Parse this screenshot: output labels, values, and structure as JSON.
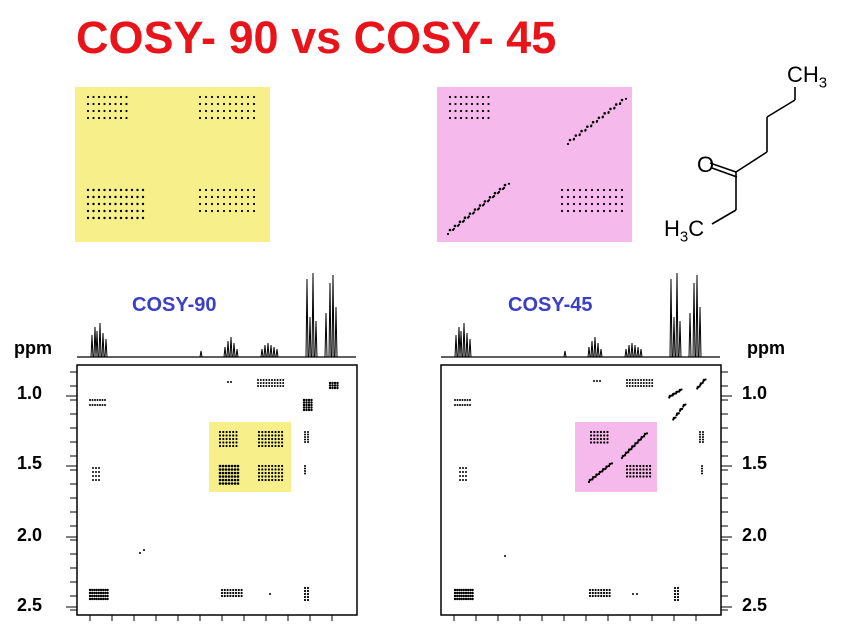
{
  "title": "COSY- 90 vs COSY- 45",
  "colors": {
    "title_red": "#e8141a",
    "label_blue": "#3b3fc4",
    "yellow": "#f7f08a",
    "pink": "#f6b9ec"
  },
  "molecule": {
    "ch3_top": "CH3",
    "oxygen": "O",
    "h3c_bottom": "H3C"
  },
  "left_panel": {
    "label": "COSY-90",
    "axis_unit": "ppm",
    "ticks": [
      "1.0",
      "1.5",
      "2.0",
      "2.5"
    ]
  },
  "right_panel": {
    "label": "COSY-45",
    "axis_unit": "ppm",
    "ticks": [
      "1.0",
      "1.5",
      "2.0",
      "2.5"
    ]
  }
}
